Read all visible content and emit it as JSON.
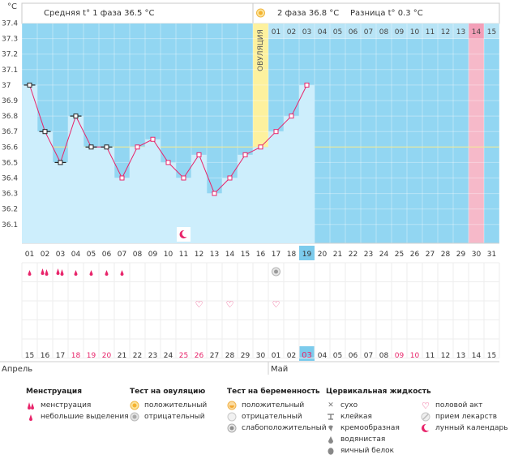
{
  "header": {
    "unit_label": "°C",
    "phase1_label": "Средняя t° 1 фаза 36.5 °C",
    "phase2_label": "2 фаза  36.8 °C",
    "difference_label": "Разница t° 0.3 °C",
    "ovulation_label": "ОВУЛЯЦИЯ"
  },
  "chart_data": {
    "type": "line",
    "y_ticks": [
      "37.4",
      "37.3",
      "37.2",
      "37.1",
      "37",
      "36.9",
      "36.8",
      "36.7",
      "36.6",
      "36.5",
      "36.4",
      "36.3",
      "36.2",
      "36.1"
    ],
    "ylim": [
      36.1,
      37.45
    ],
    "cycle_days": [
      "01",
      "02",
      "03",
      "04",
      "05",
      "06",
      "07",
      "08",
      "09",
      "10",
      "11",
      "12",
      "13",
      "14",
      "15",
      "16",
      "17",
      "18",
      "19",
      "20",
      "21",
      "22",
      "23",
      "24",
      "25",
      "26",
      "27",
      "28",
      "29",
      "30",
      "31"
    ],
    "calendar_days": [
      "15",
      "16",
      "17",
      "18",
      "19",
      "20",
      "21",
      "22",
      "23",
      "24",
      "25",
      "26",
      "27",
      "28",
      "29",
      "30",
      "01",
      "02",
      "03",
      "04",
      "05",
      "06",
      "07",
      "08",
      "09",
      "10",
      "11",
      "12",
      "13",
      "14",
      "15"
    ],
    "calendar_red": [
      4,
      5,
      6,
      11,
      12,
      19,
      25,
      26
    ],
    "phase2_day_labels": [
      "01",
      "02",
      "03",
      "04",
      "05",
      "06",
      "07",
      "08",
      "09",
      "10",
      "11",
      "12",
      "13",
      "14",
      "15"
    ],
    "temperatures": [
      37.0,
      36.7,
      36.5,
      36.8,
      36.6,
      36.6,
      36.4,
      36.6,
      36.65,
      36.5,
      36.4,
      36.55,
      36.3,
      36.4,
      36.55,
      36.6,
      36.7,
      36.8,
      37.0
    ],
    "black_markers": [
      1,
      2,
      3,
      4,
      5,
      6
    ],
    "coverline": 36.6,
    "ovulation_day": 16,
    "today_day": 19,
    "expected_period_day": 30,
    "months": [
      "Апрель",
      "Май"
    ],
    "colors": {
      "sky": "#92d6f2",
      "fill": "#cdeefc",
      "line": "#e8246a",
      "ovulation": "#fdf19e",
      "period": "#f6b9c9",
      "today": "#7ccbec",
      "coverline": "#f2ea8c"
    },
    "symbols": {
      "menstruation": [
        1,
        2,
        3,
        4,
        5,
        6,
        7
      ],
      "heavy_menstruation": [
        2,
        3
      ],
      "moon": [
        11
      ],
      "intercourse": [
        12,
        14,
        17
      ],
      "negative_pregnancy_test": [
        17
      ]
    }
  },
  "legend": {
    "menstruation": {
      "title": "Менструация",
      "items": [
        "менструация",
        "небольшие выделения"
      ]
    },
    "ovulation_test": {
      "title": "Тест на овуляцию",
      "items": [
        "положительный",
        "отрицательный"
      ]
    },
    "pregnancy_test": {
      "title": "Тест на беременность",
      "items": [
        "положительный",
        "отрицательный",
        "слабоположительный"
      ]
    },
    "cervical": {
      "title": "Цервикальная жидкость",
      "items": [
        "сухо",
        "клейкая",
        "кремообразная",
        "водянистая",
        "яичный белок"
      ]
    },
    "other": {
      "items": [
        "половой акт",
        "прием лекарств",
        "лунный календарь"
      ]
    }
  }
}
